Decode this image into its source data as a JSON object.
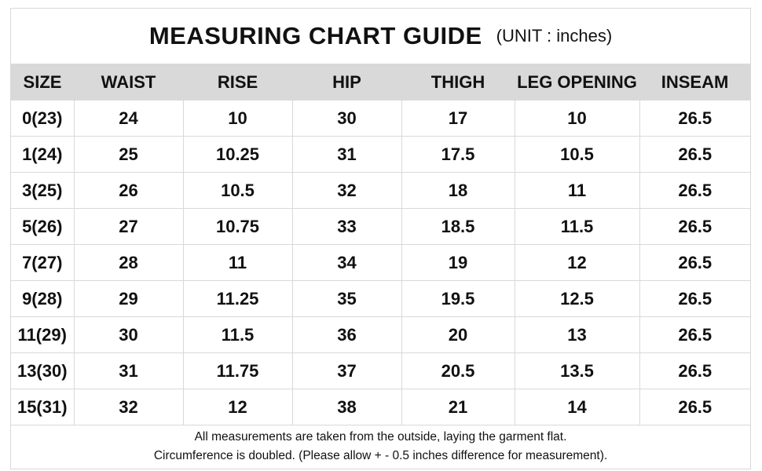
{
  "header": {
    "title": "MEASURING CHART GUIDE",
    "unit": "(UNIT : inches)"
  },
  "table": {
    "columns": [
      "SIZE",
      "WAIST",
      "RISE",
      "HIP",
      "THIGH",
      "LEG OPENING",
      "INSEAM"
    ],
    "rows": [
      [
        "0(23)",
        "24",
        "10",
        "30",
        "17",
        "10",
        "26.5"
      ],
      [
        "1(24)",
        "25",
        "10.25",
        "31",
        "17.5",
        "10.5",
        "26.5"
      ],
      [
        "3(25)",
        "26",
        "10.5",
        "32",
        "18",
        "11",
        "26.5"
      ],
      [
        "5(26)",
        "27",
        "10.75",
        "33",
        "18.5",
        "11.5",
        "26.5"
      ],
      [
        "7(27)",
        "28",
        "11",
        "34",
        "19",
        "12",
        "26.5"
      ],
      [
        "9(28)",
        "29",
        "11.25",
        "35",
        "19.5",
        "12.5",
        "26.5"
      ],
      [
        "11(29)",
        "30",
        "11.5",
        "36",
        "20",
        "13",
        "26.5"
      ],
      [
        "13(30)",
        "31",
        "11.75",
        "37",
        "20.5",
        "13.5",
        "26.5"
      ],
      [
        "15(31)",
        "32",
        "12",
        "38",
        "21",
        "14",
        "26.5"
      ]
    ]
  },
  "footer": {
    "line1": "All measurements are taken from the outside, laying the garment flat.",
    "line2": "Circumference is doubled. (Please allow + - 0.5 inches difference for measurement)."
  },
  "colors": {
    "header_bg": "#d9d9d9",
    "grid": "#d9d9d9",
    "text": "#111111"
  }
}
